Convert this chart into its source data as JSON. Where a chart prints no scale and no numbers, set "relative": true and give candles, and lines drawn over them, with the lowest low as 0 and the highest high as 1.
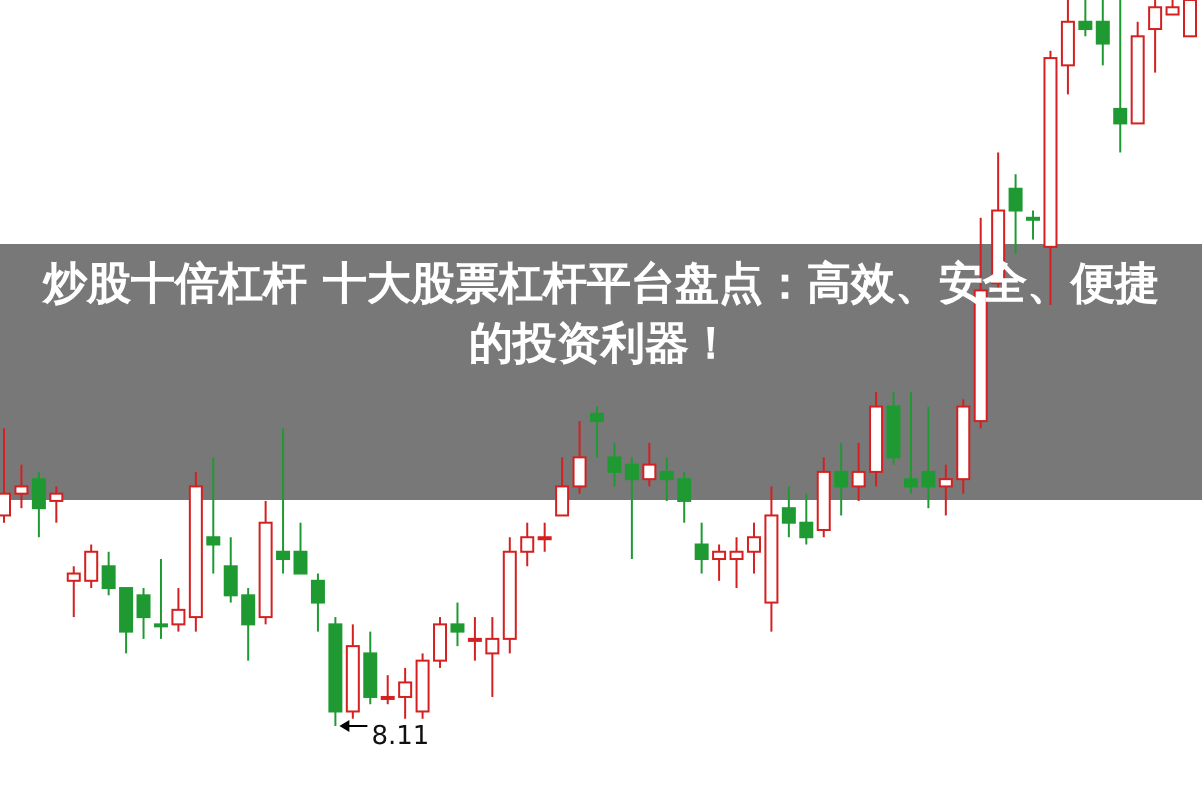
{
  "chart_data": {
    "type": "candlestick",
    "relative": true,
    "title": "炒股十倍杠杆 十大股票杠杆平台盘点：高效、安全、便捷的投资利器！",
    "categories": [
      null,
      null,
      null,
      null,
      null,
      null,
      null,
      null,
      null,
      null,
      null,
      null,
      null,
      null,
      null,
      null,
      null,
      null,
      null,
      null,
      null,
      null,
      null,
      null,
      null,
      null,
      null,
      null,
      null,
      null,
      null,
      null,
      null,
      null,
      null,
      null,
      null,
      null,
      null,
      null,
      null,
      null,
      null,
      null,
      null,
      null,
      null,
      null,
      null,
      null,
      null,
      null,
      null,
      null,
      null,
      null,
      null,
      null,
      null,
      null,
      null,
      null,
      null,
      null,
      null,
      null,
      null,
      null,
      null
    ],
    "ohlc": [
      [
        0.29,
        0.41,
        0.28,
        0.32
      ],
      [
        0.32,
        0.36,
        0.3,
        0.33
      ],
      [
        0.34,
        0.35,
        0.26,
        0.3
      ],
      [
        0.31,
        0.33,
        0.28,
        0.32
      ],
      [
        0.2,
        0.22,
        0.15,
        0.21
      ],
      [
        0.2,
        0.25,
        0.19,
        0.24
      ],
      [
        0.22,
        0.24,
        0.18,
        0.19
      ],
      [
        0.19,
        0.19,
        0.1,
        0.13
      ],
      [
        0.18,
        0.19,
        0.12,
        0.15
      ],
      [
        0.14,
        0.23,
        0.12,
        0.14
      ],
      [
        0.14,
        0.19,
        0.13,
        0.16
      ],
      [
        0.15,
        0.35,
        0.13,
        0.33
      ],
      [
        0.26,
        0.37,
        0.21,
        0.25
      ],
      [
        0.22,
        0.26,
        0.17,
        0.18
      ],
      [
        0.18,
        0.19,
        0.09,
        0.14
      ],
      [
        0.15,
        0.31,
        0.14,
        0.28
      ],
      [
        0.24,
        0.41,
        0.21,
        0.23
      ],
      [
        0.24,
        0.28,
        0.21,
        0.21
      ],
      [
        0.2,
        0.21,
        0.13,
        0.17
      ],
      [
        0.14,
        0.15,
        0,
        0.02
      ],
      [
        0.02,
        0.14,
        0.01,
        0.11
      ],
      [
        0.1,
        0.13,
        0.03,
        0.04
      ],
      [
        0.04,
        0.07,
        0.03,
        0.04
      ],
      [
        0.04,
        0.08,
        0.01,
        0.06
      ],
      [
        0.02,
        0.1,
        0.01,
        0.09
      ],
      [
        0.09,
        0.15,
        0.08,
        0.14
      ],
      [
        0.14,
        0.17,
        0.11,
        0.13
      ],
      [
        0.12,
        0.15,
        0.09,
        0.12
      ],
      [
        0.1,
        0.15,
        0.04,
        0.12
      ],
      [
        0.12,
        0.26,
        0.1,
        0.24
      ],
      [
        0.24,
        0.28,
        0.22,
        0.26
      ],
      [
        0.26,
        0.28,
        0.24,
        0.26
      ],
      [
        0.29,
        0.37,
        0.29,
        0.33
      ],
      [
        0.33,
        0.42,
        0.32,
        0.37
      ],
      [
        0.43,
        0.44,
        0.37,
        0.42
      ],
      [
        0.37,
        0.39,
        0.33,
        0.35
      ],
      [
        0.36,
        0.37,
        0.23,
        0.34
      ],
      [
        0.34,
        0.39,
        0.33,
        0.36
      ],
      [
        0.35,
        0.37,
        0.31,
        0.34
      ],
      [
        0.34,
        0.35,
        0.28,
        0.31
      ],
      [
        0.25,
        0.28,
        0.21,
        0.23
      ],
      [
        0.23,
        0.25,
        0.2,
        0.24
      ],
      [
        0.23,
        0.26,
        0.19,
        0.24
      ],
      [
        0.24,
        0.28,
        0.21,
        0.26
      ],
      [
        0.17,
        0.33,
        0.13,
        0.29
      ],
      [
        0.3,
        0.33,
        0.26,
        0.28
      ],
      [
        0.28,
        0.32,
        0.25,
        0.26
      ],
      [
        0.27,
        0.37,
        0.26,
        0.35
      ],
      [
        0.35,
        0.39,
        0.29,
        0.33
      ],
      [
        0.33,
        0.39,
        0.31,
        0.35
      ],
      [
        0.35,
        0.46,
        0.33,
        0.44
      ],
      [
        0.44,
        0.46,
        0.36,
        0.37
      ],
      [
        0.34,
        0.46,
        0.32,
        0.33
      ],
      [
        0.35,
        0.44,
        0.3,
        0.33
      ],
      [
        0.33,
        0.36,
        0.29,
        0.34
      ],
      [
        0.34,
        0.45,
        0.32,
        0.44
      ],
      [
        0.42,
        0.7,
        0.41,
        0.6
      ],
      [
        0.61,
        0.79,
        0.6,
        0.71
      ],
      [
        0.74,
        0.76,
        0.65,
        0.71
      ],
      [
        0.7,
        0.71,
        0.67,
        0.7
      ],
      [
        0.66,
        0.93,
        0.58,
        0.92
      ],
      [
        0.91,
        1,
        0.87,
        0.97
      ],
      [
        0.97,
        1,
        0.95,
        0.96
      ],
      [
        0.97,
        1,
        0.91,
        0.94
      ],
      [
        0.85,
        1,
        0.79,
        0.83
      ],
      [
        0.83,
        0.97,
        0.83,
        0.95
      ],
      [
        0.96,
        1,
        0.9,
        0.99
      ],
      [
        0.98,
        1,
        0.98,
        0.99
      ],
      [
        0.95,
        1,
        0.95,
        1
      ]
    ],
    "colors": [
      "#d42020",
      "#d42020",
      "#1f9a32",
      "#d42020",
      "#d42020",
      "#d42020",
      "#1f9a32",
      "#1f9a32",
      "#1f9a32",
      "#1f9a32",
      "#d42020",
      "#d42020",
      "#1f9a32",
      "#1f9a32",
      "#1f9a32",
      "#d42020",
      "#1f9a32",
      "#1f9a32",
      "#1f9a32",
      "#1f9a32",
      "#d42020",
      "#1f9a32",
      "#d42020",
      "#d42020",
      "#d42020",
      "#d42020",
      "#1f9a32",
      "#d42020",
      "#d42020",
      "#d42020",
      "#d42020",
      "#d42020",
      "#d42020",
      "#d42020",
      "#1f9a32",
      "#1f9a32",
      "#1f9a32",
      "#d42020",
      "#1f9a32",
      "#1f9a32",
      "#1f9a32",
      "#d42020",
      "#d42020",
      "#d42020",
      "#d42020",
      "#1f9a32",
      "#1f9a32",
      "#d42020",
      "#1f9a32",
      "#d42020",
      "#d42020",
      "#1f9a32",
      "#1f9a32",
      "#1f9a32",
      "#d42020",
      "#d42020",
      "#d42020",
      "#d42020",
      "#1f9a32",
      "#1f9a32",
      "#d42020",
      "#d42020",
      "#1f9a32",
      "#1f9a32",
      "#1f9a32",
      "#d42020",
      "#d42020",
      "#d42020",
      "#d42020"
    ],
    "annotations": [
      {
        "text": "8.11",
        "y": 0
      }
    ]
  }
}
